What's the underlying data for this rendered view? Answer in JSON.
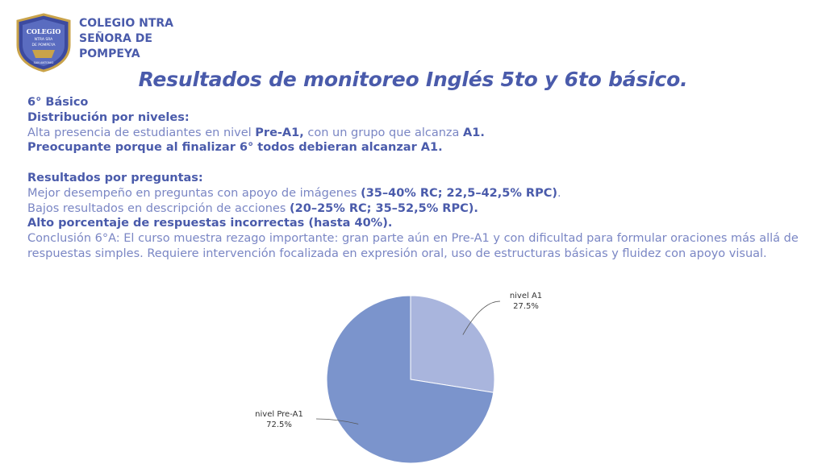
{
  "header": {
    "school_name": "COLEGIO NTRA\nSEÑORA DE\nPOMPEYA",
    "logo_text": [
      "COLEGIO",
      "NTRA SRA",
      "DE POMPEYA",
      "SAN ANTONIO"
    ]
  },
  "title": "Resultados de monitoreo Inglés 5to y 6to básico.",
  "body": {
    "grade": "6° Básico",
    "dist_heading": "Distribución por niveles:",
    "dist_line1_a": "Alta presencia de estudiantes en nivel ",
    "dist_line1_b": "Pre-A1,",
    "dist_line1_c": " con un grupo que alcanza ",
    "dist_line1_d": "A1.",
    "dist_line2": "Preocupante porque al finalizar 6° todos debieran alcanzar A1.",
    "results_heading": "Resultados por preguntas:",
    "res_line1_a": "Mejor desempeño en preguntas con apoyo de imágenes ",
    "res_line1_b": "(35–40% RC; 22,5–42,5% RPC)",
    "res_line1_c": ".",
    "res_line2_a": "Bajos resultados en descripción de acciones ",
    "res_line2_b": "(20–25% RC; 35–52,5% RPC).",
    "res_line3": "Alto porcentaje de respuestas incorrectas (hasta 40%).",
    "conclusion": "Conclusión 6°A: El curso muestra rezago importante: gran parte aún en Pre-A1 y con dificultad para formular oraciones más allá de respuestas simples. Requiere intervención focalizada en expresión oral, uso de estructuras básicas y fluidez con apoyo visual."
  },
  "chart_data": {
    "type": "pie",
    "title": "",
    "slices": [
      {
        "label": "nivel A1",
        "value": 27.5,
        "value_label": "27.5%",
        "color": "#a9b5dd"
      },
      {
        "label": "nivel Pre-A1",
        "value": 72.5,
        "value_label": "72.5%",
        "color": "#7b94cc"
      }
    ],
    "start": "12 o'clock, clockwise",
    "legend": "none (labels with leader lines)"
  },
  "colors": {
    "accent": "#4a5bab",
    "body_text": "#7a86c4"
  }
}
